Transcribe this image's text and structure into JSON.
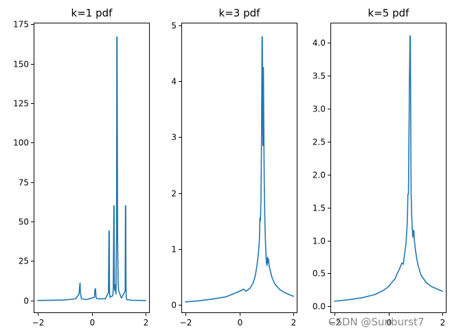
{
  "colors": {
    "series": "#1f77b4",
    "axes": "#000000",
    "watermark": "#8a8a8a"
  },
  "watermark": "CSDN @Sunburst7",
  "chart_data": [
    {
      "type": "line",
      "title": "k=1 pdf",
      "xlim": [
        -2.15,
        2.15
      ],
      "ylim": [
        -8,
        176
      ],
      "xticks": [
        -2,
        0,
        2
      ],
      "yticks": [
        0,
        25,
        50,
        75,
        100,
        125,
        150,
        175
      ],
      "ytick_labels": [
        "0",
        "25",
        "50",
        "75",
        "100",
        "125",
        "150",
        "175"
      ],
      "xtick_labels": [
        "−2",
        "0",
        "2"
      ],
      "grid": false,
      "series": [
        {
          "x": [
            -2.0,
            -1.5,
            -1.0,
            -0.6,
            -0.47,
            -0.44,
            -0.43,
            -0.42,
            -0.38,
            -0.2,
            0.1,
            0.12,
            0.14,
            0.16,
            0.2,
            0.5,
            0.62,
            0.64,
            0.65,
            0.66,
            0.68,
            0.78,
            0.8,
            0.82,
            0.83,
            0.84,
            0.86,
            0.88,
            0.9,
            0.92,
            0.93,
            0.94,
            0.96,
            0.98,
            1.0,
            1.1,
            1.24,
            1.25,
            1.26,
            1.27,
            1.28,
            1.3,
            1.5,
            1.8,
            2.0
          ],
          "y": [
            0.0,
            0.1,
            0.3,
            1.0,
            4.0,
            10.0,
            11.0,
            5.0,
            1.0,
            0.5,
            2.0,
            7.0,
            7.5,
            2.0,
            1.0,
            1.0,
            5.0,
            44.0,
            44.0,
            5.0,
            2.0,
            3.0,
            8.0,
            60.0,
            60.0,
            8.0,
            6.0,
            10.0,
            4.0,
            40.0,
            167.0,
            167.0,
            40.0,
            10.0,
            6.0,
            1.5,
            6.0,
            60.0,
            60.0,
            10.0,
            1.5,
            0.5,
            0.1,
            0.0,
            0.0
          ]
        }
      ]
    },
    {
      "type": "line",
      "title": "k=3 pdf",
      "xlim": [
        -2.15,
        2.15
      ],
      "ylim": [
        -0.15,
        5.05
      ],
      "xticks": [
        -2,
        0,
        2
      ],
      "yticks": [
        0,
        1,
        2,
        3,
        4,
        5
      ],
      "ytick_labels": [
        "0",
        "1",
        "2",
        "3",
        "4",
        "5"
      ],
      "xtick_labels": [
        "−2",
        "0",
        "2"
      ],
      "grid": false,
      "series": [
        {
          "x": [
            -2.0,
            -1.5,
            -1.0,
            -0.5,
            -0.2,
            0.0,
            0.1,
            0.15,
            0.2,
            0.25,
            0.3,
            0.4,
            0.5,
            0.55,
            0.6,
            0.65,
            0.7,
            0.74,
            0.76,
            0.78,
            0.8,
            0.82,
            0.84,
            0.85,
            0.86,
            0.87,
            0.88,
            0.89,
            0.9,
            0.91,
            0.92,
            0.94,
            0.96,
            0.98,
            1.0,
            1.02,
            1.04,
            1.06,
            1.08,
            1.1,
            1.2,
            1.3,
            1.5,
            1.7,
            2.0
          ],
          "y": [
            0.05,
            0.07,
            0.1,
            0.14,
            0.2,
            0.24,
            0.26,
            0.28,
            0.26,
            0.24,
            0.26,
            0.3,
            0.38,
            0.45,
            0.55,
            0.7,
            0.9,
            1.15,
            1.55,
            1.5,
            1.9,
            3.0,
            4.8,
            4.8,
            3.4,
            2.85,
            3.5,
            4.25,
            3.5,
            2.8,
            2.2,
            1.6,
            1.2,
            0.95,
            0.75,
            0.7,
            0.85,
            0.75,
            0.82,
            0.7,
            0.5,
            0.38,
            0.27,
            0.21,
            0.15
          ]
        }
      ]
    },
    {
      "type": "line",
      "title": "k=5 pdf",
      "xlim": [
        -2.15,
        2.15
      ],
      "ylim": [
        -0.1,
        4.3
      ],
      "xticks": [
        -2,
        0,
        2
      ],
      "yticks": [
        0.0,
        0.5,
        1.0,
        1.5,
        2.0,
        2.5,
        3.0,
        3.5,
        4.0
      ],
      "ytick_labels": [
        "0.0",
        "0.5",
        "1.0",
        "1.5",
        "2.0",
        "2.5",
        "3.0",
        "3.5",
        "4.0"
      ],
      "xtick_labels": [
        "−2",
        "0",
        "2"
      ],
      "grid": false,
      "series": [
        {
          "x": [
            -2.0,
            -1.5,
            -1.0,
            -0.5,
            -0.2,
            0.0,
            0.1,
            0.2,
            0.25,
            0.3,
            0.4,
            0.5,
            0.55,
            0.6,
            0.65,
            0.7,
            0.72,
            0.74,
            0.76,
            0.78,
            0.8,
            0.81,
            0.82,
            0.83,
            0.84,
            0.86,
            0.88,
            0.9,
            0.92,
            0.94,
            0.96,
            1.0,
            1.02,
            1.05,
            1.1,
            1.2,
            1.4,
            1.6,
            2.0
          ],
          "y": [
            0.08,
            0.1,
            0.13,
            0.18,
            0.24,
            0.3,
            0.35,
            0.4,
            0.42,
            0.48,
            0.56,
            0.66,
            0.64,
            0.8,
            0.95,
            1.3,
            1.7,
            1.7,
            2.6,
            3.5,
            4.1,
            4.1,
            3.3,
            2.4,
            1.7,
            1.4,
            1.2,
            1.05,
            1.15,
            1.15,
            1.0,
            0.85,
            0.8,
            0.72,
            0.62,
            0.48,
            0.36,
            0.3,
            0.23
          ]
        }
      ]
    }
  ]
}
